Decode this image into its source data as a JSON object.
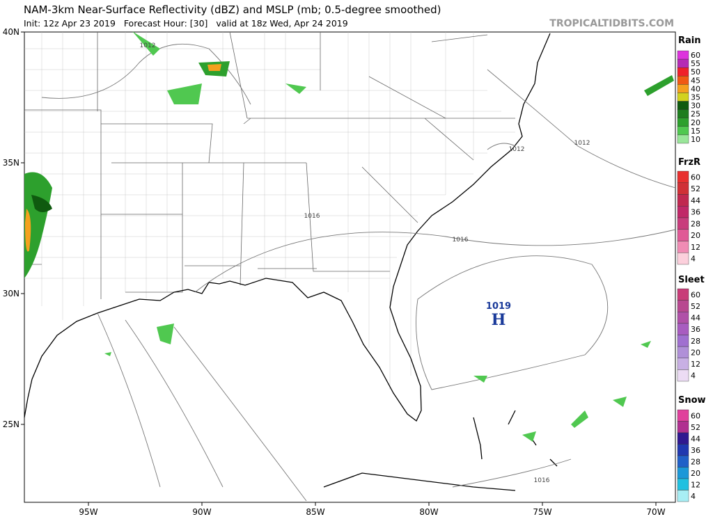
{
  "header": {
    "title": "NAM-3km Near-Surface Reflectivity (dBZ) and MSLP (mb; 0.5-degree smoothed)",
    "subtitle": "Init: 12z Apr 23 2019   Forecast Hour: [30]   valid at 18z Wed, Apr 24 2019",
    "watermark": "TROPICALTIDBITS.COM"
  },
  "map": {
    "lat_ticks": [
      {
        "value": 40,
        "label": "40N"
      },
      {
        "value": 35,
        "label": "35N"
      },
      {
        "value": 30,
        "label": "30N"
      },
      {
        "value": 25,
        "label": "25N"
      }
    ],
    "lon_ticks": [
      {
        "value": -95,
        "label": "95W"
      },
      {
        "value": -90,
        "label": "90W"
      },
      {
        "value": -85,
        "label": "85W"
      },
      {
        "value": -80,
        "label": "80W"
      },
      {
        "value": -75,
        "label": "75W"
      },
      {
        "value": -70,
        "label": "70W"
      }
    ],
    "isobar_labels": [
      "1012",
      "1012",
      "1012",
      "1016",
      "1016",
      "1016"
    ],
    "high": {
      "pressure": "1019",
      "symbol": "H"
    }
  },
  "legends": [
    {
      "title": "Rain",
      "levels": [
        {
          "value": 60,
          "color": "#dd33dd"
        },
        {
          "value": 55,
          "color": "#b52bb5"
        },
        {
          "value": 50,
          "color": "#f0202a"
        },
        {
          "value": 45,
          "color": "#f05a14"
        },
        {
          "value": 40,
          "color": "#f5a01e"
        },
        {
          "value": 35,
          "color": "#d2d21e"
        },
        {
          "value": 30,
          "color": "#0f5a0f"
        },
        {
          "value": 25,
          "color": "#1e7d1e"
        },
        {
          "value": 20,
          "color": "#2da02d"
        },
        {
          "value": 15,
          "color": "#50c850"
        },
        {
          "value": 10,
          "color": "#9ae69a"
        }
      ]
    },
    {
      "title": "FrzR",
      "levels": [
        {
          "value": 60,
          "color": "#e8302f"
        },
        {
          "value": 52,
          "color": "#d03036"
        },
        {
          "value": 44,
          "color": "#c02850"
        },
        {
          "value": 36,
          "color": "#c02868"
        },
        {
          "value": 28,
          "color": "#c83c7c"
        },
        {
          "value": 20,
          "color": "#e05a96"
        },
        {
          "value": 12,
          "color": "#f08cb4"
        },
        {
          "value": 4,
          "color": "#fcd0dc"
        }
      ]
    },
    {
      "title": "Sleet",
      "levels": [
        {
          "value": 60,
          "color": "#c83c78"
        },
        {
          "value": 52,
          "color": "#b84890"
        },
        {
          "value": 44,
          "color": "#b050a8"
        },
        {
          "value": 36,
          "color": "#a85cc0"
        },
        {
          "value": 28,
          "color": "#a070d0"
        },
        {
          "value": 20,
          "color": "#b090d8"
        },
        {
          "value": 12,
          "color": "#c8b0e4"
        },
        {
          "value": 4,
          "color": "#ecdcf4"
        }
      ]
    },
    {
      "title": "Snow",
      "levels": [
        {
          "value": 60,
          "color": "#e0409c"
        },
        {
          "value": 52,
          "color": "#b03090"
        },
        {
          "value": 44,
          "color": "#301890"
        },
        {
          "value": 36,
          "color": "#2038b0"
        },
        {
          "value": 28,
          "color": "#2060c8"
        },
        {
          "value": 20,
          "color": "#1c98d8"
        },
        {
          "value": 12,
          "color": "#20c0e0"
        },
        {
          "value": 4,
          "color": "#a8eef4"
        }
      ]
    }
  ]
}
